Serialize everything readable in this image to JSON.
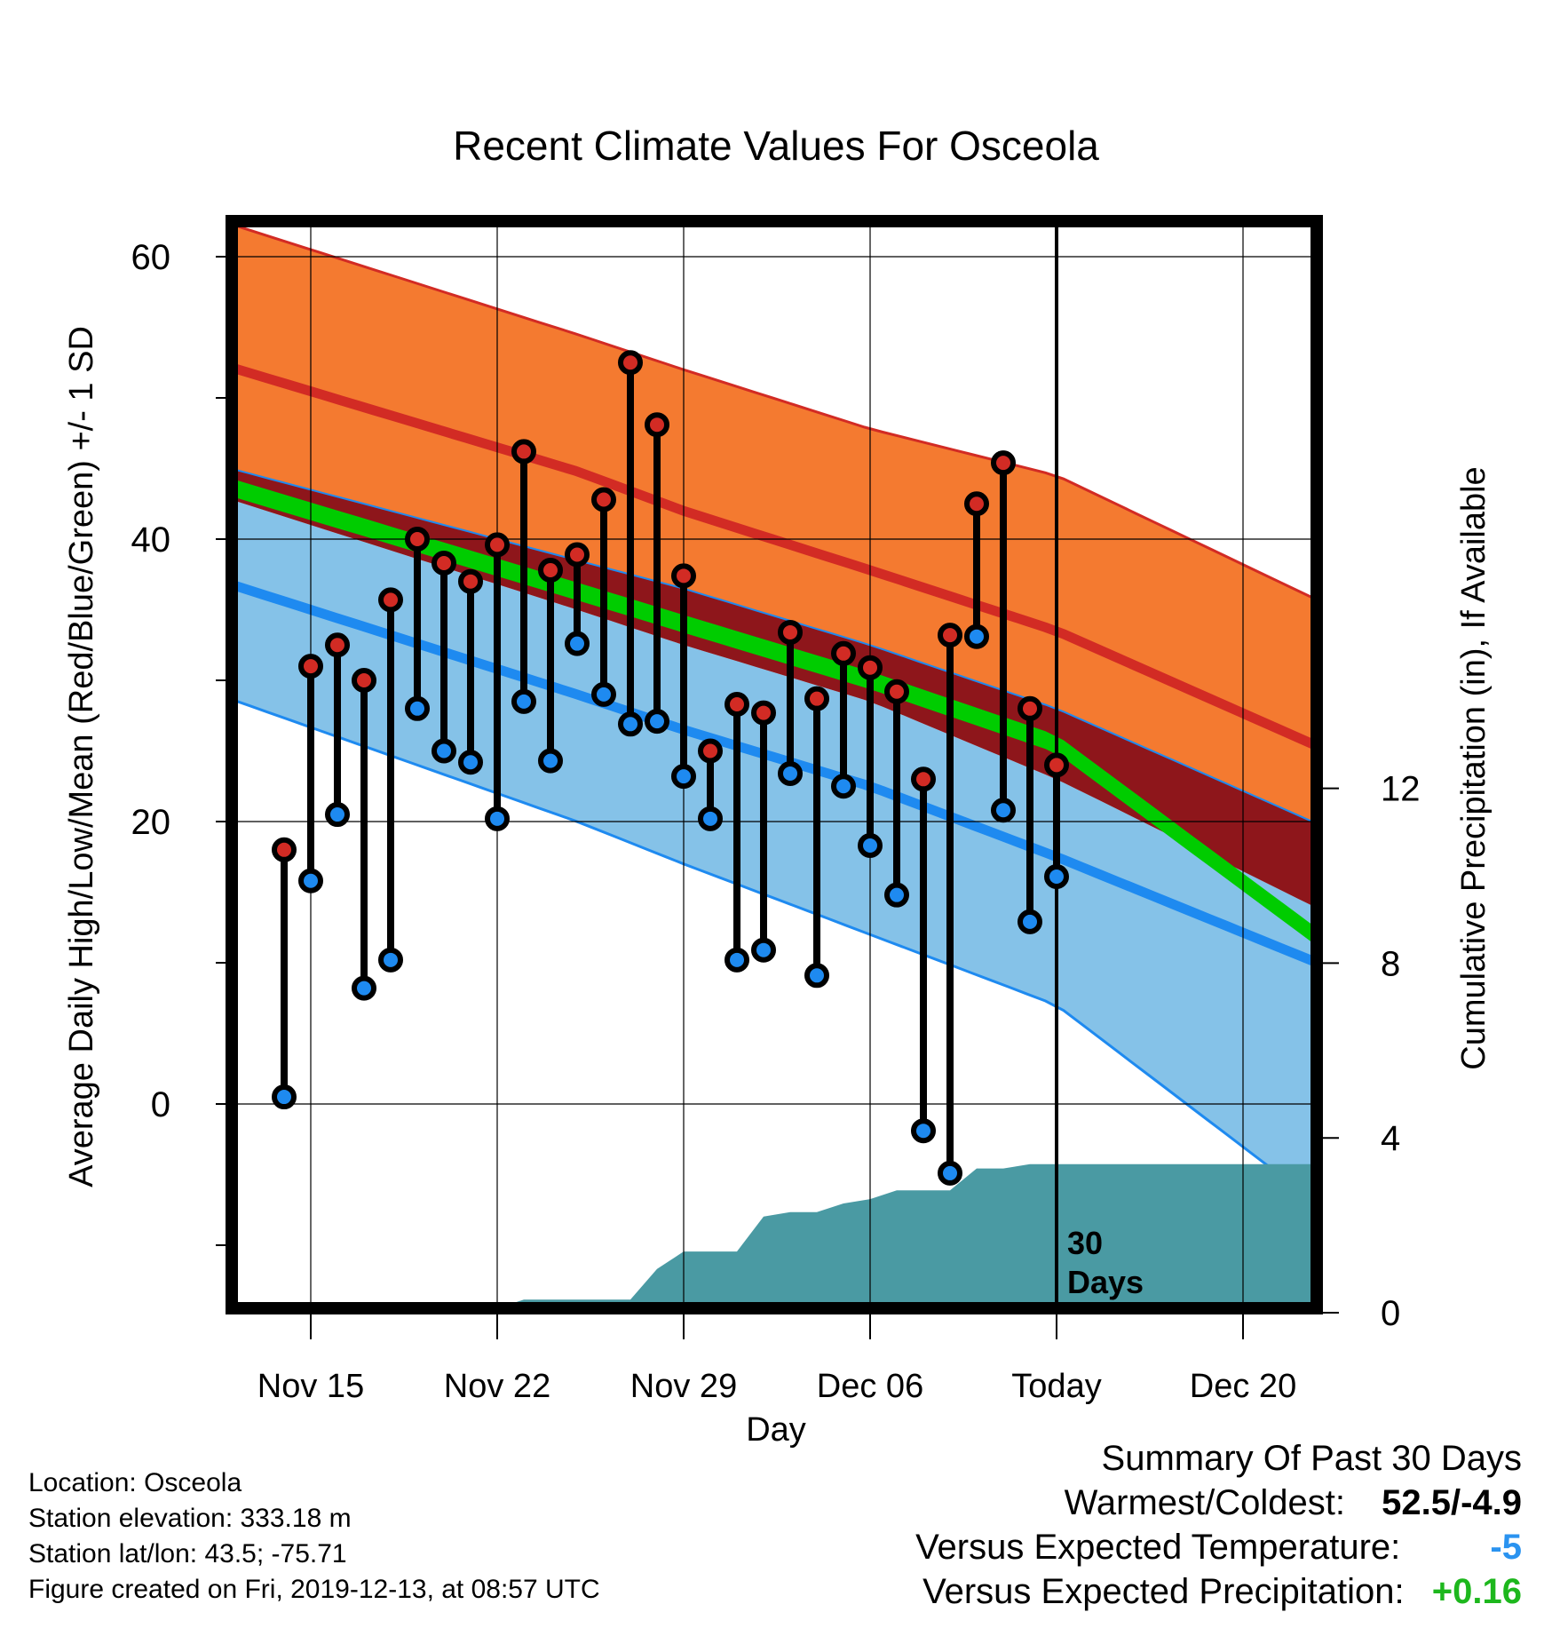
{
  "chart_data": {
    "type": "line",
    "title": "Recent Climate Values For Osceola",
    "xlabel": "Day",
    "ylabel": "Average Daily High/Low/Mean (Red/Blue/Green) +/- 1 SD",
    "y2label": "Cumulative Precipitation (in), If Available",
    "ylim": [
      -14.5,
      64
    ],
    "y2lim": [
      0,
      23.3
    ],
    "yticks": [
      "0",
      "20",
      "40",
      "60"
    ],
    "y2ticks": [
      "0",
      "4",
      "8",
      "12"
    ],
    "xticks": [
      "Nov 15",
      "Nov 22",
      "Nov 29",
      "Dec 06",
      "Today",
      "Dec 20"
    ],
    "grid": true,
    "today_marker": "30\nDays",
    "normals": {
      "days": [
        -21,
        -18,
        -14,
        -7,
        0,
        3
      ],
      "high_mean": [
        46.5,
        44.8,
        42.0,
        37.8,
        33.5,
        31.0
      ],
      "high_upper": [
        56.3,
        54.5,
        52.0,
        47.8,
        44.5,
        41.8
      ],
      "high_lower": [
        40.0,
        38.5,
        36.5,
        32.5,
        28.0,
        25.5
      ],
      "low_mean": [
        30.8,
        29.0,
        26.5,
        22.5,
        17.5,
        15.2
      ],
      "low_upper": [
        36.8,
        35.0,
        32.5,
        28.5,
        23.0,
        20.2
      ],
      "low_lower": [
        22.0,
        20.0,
        17.0,
        12.0,
        7.0,
        2.7
      ],
      "mean_avg": [
        38.0,
        36.3,
        34.0,
        30.0,
        25.5,
        21.3
      ]
    },
    "series": [
      {
        "name": "High",
        "values": [
          18.0,
          31.0,
          32.5,
          30.0,
          35.7,
          40.0,
          38.3,
          37.0,
          39.6,
          46.2,
          37.8,
          38.9,
          42.8,
          52.5,
          48.1,
          37.4,
          25.0,
          28.3,
          27.7,
          33.4,
          28.7,
          31.9,
          30.9,
          29.2,
          23.0,
          33.2,
          42.5,
          45.4,
          28.0,
          24.0
        ]
      },
      {
        "name": "Low",
        "values": [
          0.5,
          15.8,
          20.5,
          8.2,
          10.2,
          28.0,
          25.0,
          24.2,
          20.2,
          28.5,
          24.3,
          32.6,
          29.0,
          26.9,
          27.1,
          23.2,
          20.2,
          10.2,
          10.9,
          23.4,
          9.1,
          22.5,
          18.3,
          14.8,
          -1.9,
          -4.9,
          33.1,
          20.8,
          12.9,
          16.1
        ]
      }
    ],
    "x": [
      -29,
      -28,
      -27,
      -26,
      -25,
      -24,
      -23,
      -22,
      -21,
      -20,
      -19,
      -18,
      -17,
      -16,
      -15,
      -14,
      -13,
      -12,
      -11,
      -10,
      -9,
      -8,
      -7,
      -6,
      -5,
      -4,
      -3,
      -2,
      -1,
      0
    ],
    "precip": {
      "days": [
        -30,
        -22,
        -21,
        -20,
        -16,
        -15,
        -14,
        -13,
        -12,
        -11,
        -10,
        -9,
        -8,
        -7,
        -6,
        -5,
        -4,
        -3,
        -2,
        -1,
        0,
        9.6
      ],
      "values": [
        0,
        0,
        0.1,
        0.3,
        0.3,
        1.0,
        1.4,
        1.4,
        1.4,
        2.2,
        2.3,
        2.3,
        2.5,
        2.6,
        2.8,
        2.8,
        2.8,
        3.3,
        3.3,
        3.4,
        3.4,
        3.4
      ]
    }
  },
  "info": {
    "location": "Location: Osceola",
    "elevation": "Station elevation: 333.18 m",
    "latlon": "Station lat/lon: 43.5; -75.71",
    "created": "Figure created on Fri, 2019-12-13, at 08:57 UTC"
  },
  "summary": {
    "title": "Summary Of Past 30 Days",
    "warmest_label": "Warmest/Coldest:",
    "warmest_value": "52.5/-4.9",
    "temp_label": "Versus Expected Temperature:",
    "temp_value": "-5",
    "precip_label": "Versus Expected Precipitation:",
    "precip_value": "+0.16"
  },
  "colors": {
    "high_band": "#F47A30",
    "high_line": "#D22B24",
    "overlap": "#8E161B",
    "mean_band": "#00CC00",
    "low_band": "#85C2E8",
    "low_line": "#1E8AF0",
    "precip": "#4A9AA3",
    "temp_value": "#2A93F0",
    "precip_value": "#1DB71D"
  }
}
